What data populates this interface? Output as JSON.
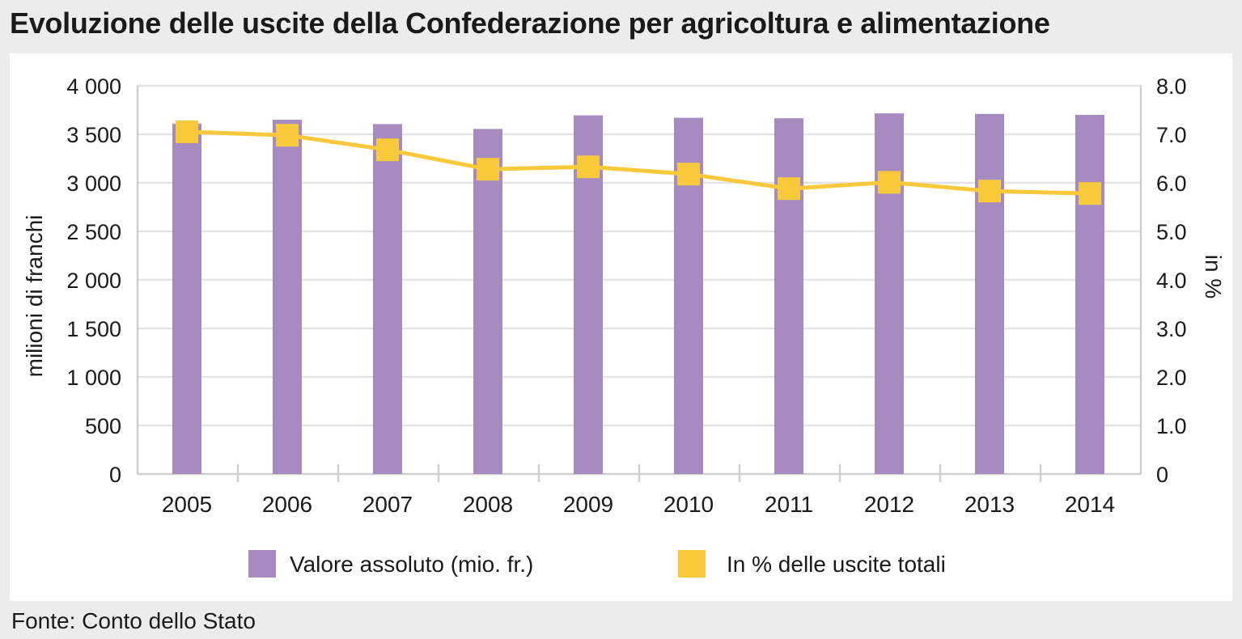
{
  "title": "Evoluzione delle uscite della Confederazione per agricoltura e alimentazione",
  "source": "Fonte: Conto dello Stato",
  "colors": {
    "bar": "#a68bc1",
    "line": "#f9c93c",
    "grid": "#e3e3e3",
    "axis": "#cfcfcf",
    "background": "#ececec"
  },
  "chart_data": {
    "type": "bar",
    "categories": [
      "2005",
      "2006",
      "2007",
      "2008",
      "2009",
      "2010",
      "2011",
      "2012",
      "2013",
      "2014"
    ],
    "series": [
      {
        "name": "Valore assoluto (mio. fr.)",
        "type": "bar",
        "axis": "left",
        "values": [
          3610,
          3650,
          3605,
          3555,
          3695,
          3670,
          3665,
          3715,
          3710,
          3700
        ]
      },
      {
        "name": "In % delle uscite totali",
        "type": "line",
        "axis": "right",
        "values": [
          7.05,
          6.98,
          6.68,
          6.28,
          6.33,
          6.18,
          5.88,
          6.01,
          5.83,
          5.78
        ]
      }
    ],
    "ylabel": "milioni di franchi",
    "ylabel_right": "in %",
    "ylim": [
      0,
      4000
    ],
    "ylim_right": [
      0,
      8
    ],
    "yticks": [
      "0",
      "500",
      "1 000",
      "1 500",
      "2 000",
      "2 500",
      "3 000",
      "3 500",
      "4 000"
    ],
    "yticks_right": [
      "0",
      "1.0",
      "2.0",
      "3.0",
      "4.0",
      "5.0",
      "6.0",
      "7.0",
      "8.0"
    ],
    "grid": true,
    "legend": "bottom"
  }
}
